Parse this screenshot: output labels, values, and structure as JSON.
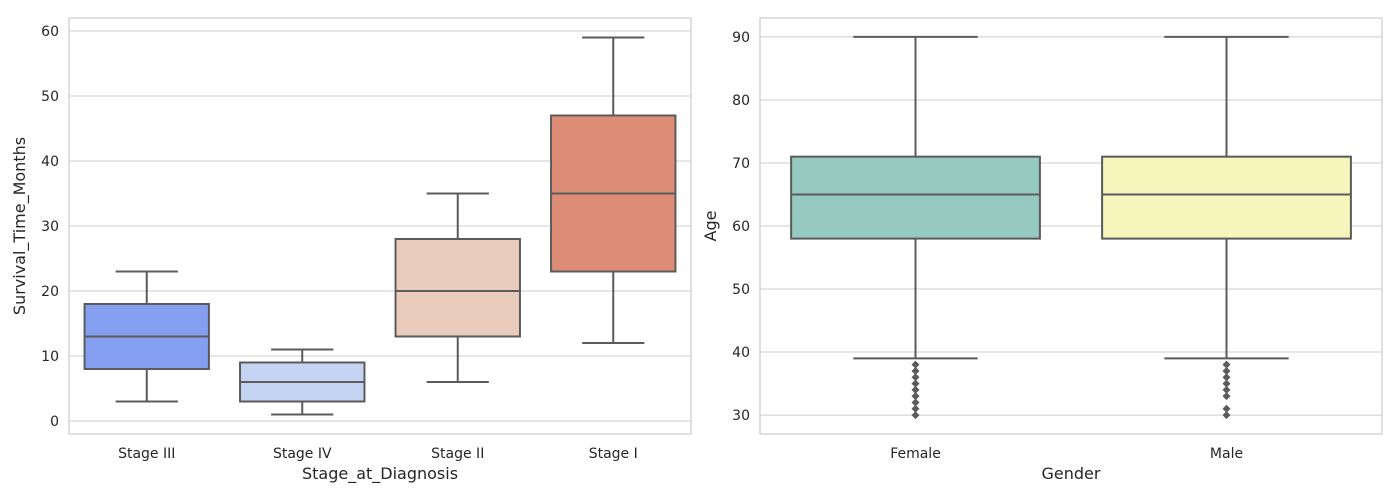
{
  "chart_data": [
    {
      "type": "box",
      "xlabel": "Stage_at_Diagnosis",
      "ylabel": "Survival_Time_Months",
      "ylim": [
        -2,
        62
      ],
      "yticks": [
        0,
        10,
        20,
        30,
        40,
        50,
        60
      ],
      "grid": true,
      "categories": [
        "Stage III",
        "Stage IV",
        "Stage II",
        "Stage I"
      ],
      "boxes": [
        {
          "category": "Stage III",
          "whisker_low": 3,
          "q1": 8,
          "median": 13,
          "q3": 18,
          "whisker_high": 23,
          "color": "#859ff0",
          "outliers": []
        },
        {
          "category": "Stage IV",
          "whisker_low": 1,
          "q1": 3,
          "median": 6,
          "q3": 9,
          "whisker_high": 11,
          "color": "#c5d4f3",
          "outliers": []
        },
        {
          "category": "Stage II",
          "whisker_low": 6,
          "q1": 13,
          "median": 20,
          "q3": 28,
          "whisker_high": 35,
          "color": "#eaccbd",
          "outliers": []
        },
        {
          "category": "Stage I",
          "whisker_low": 12,
          "q1": 23,
          "median": 35,
          "q3": 47,
          "whisker_high": 59,
          "color": "#dd8c76",
          "outliers": []
        }
      ]
    },
    {
      "type": "box",
      "xlabel": "Gender",
      "ylabel": "Age",
      "ylim": [
        27,
        93
      ],
      "yticks": [
        30,
        40,
        50,
        60,
        70,
        80,
        90
      ],
      "grid": true,
      "categories": [
        "Female",
        "Male"
      ],
      "boxes": [
        {
          "category": "Female",
          "whisker_low": 39,
          "q1": 58,
          "median": 65,
          "q3": 71,
          "whisker_high": 90,
          "color": "#96cac1",
          "outliers": [
            30,
            31,
            32,
            33,
            34,
            35,
            36,
            37,
            38
          ]
        },
        {
          "category": "Male",
          "whisker_low": 39,
          "q1": 58,
          "median": 65,
          "q3": 71,
          "whisker_high": 90,
          "color": "#f6f6bc",
          "outliers": [
            30,
            31,
            33,
            34,
            35,
            36,
            37,
            38
          ]
        }
      ]
    }
  ]
}
